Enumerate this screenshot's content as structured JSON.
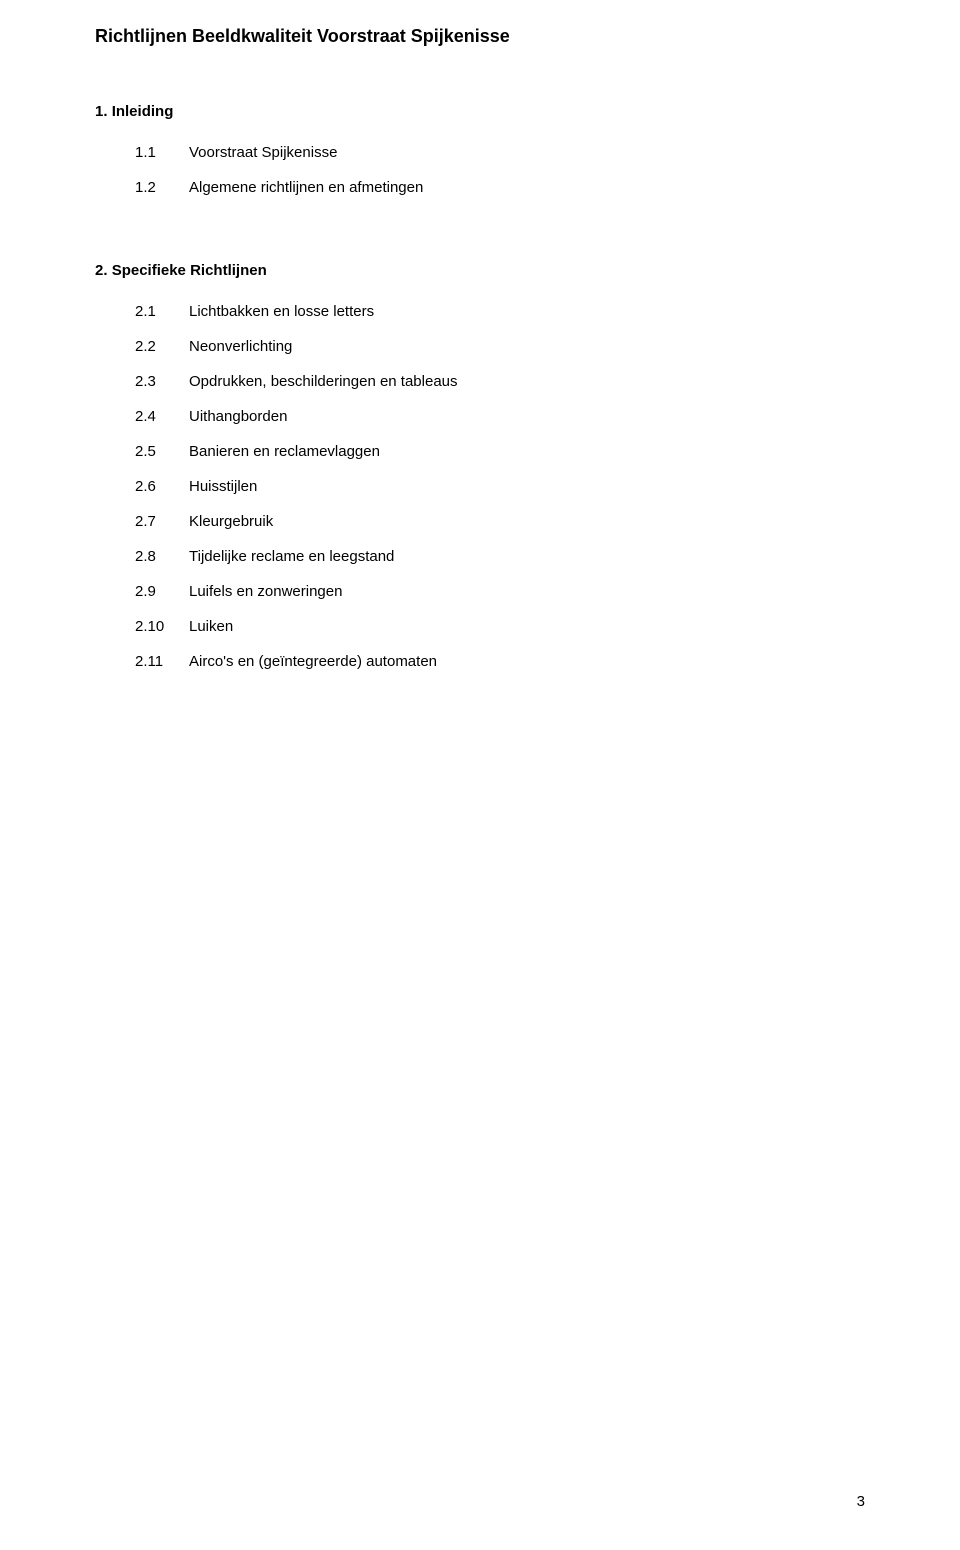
{
  "title": "Richtlijnen Beeldkwaliteit Voorstraat Spijkenisse",
  "section1": {
    "heading_num": "1.",
    "heading_text": "Inleiding",
    "items": [
      {
        "num": "1.1",
        "label": "Voorstraat Spijkenisse"
      },
      {
        "num": "1.2",
        "label": "Algemene richtlijnen en afmetingen"
      }
    ]
  },
  "section2": {
    "heading_num": "2.",
    "heading_text": "Specifieke Richtlijnen",
    "items": [
      {
        "num": "2.1",
        "label": "Lichtbakken en losse letters"
      },
      {
        "num": "2.2",
        "label": "Neonverlichting"
      },
      {
        "num": "2.3",
        "label": "Opdrukken, beschilderingen en tableaus"
      },
      {
        "num": "2.4",
        "label": "Uithangborden"
      },
      {
        "num": "2.5",
        "label": "Banieren en reclamevlaggen"
      },
      {
        "num": "2.6",
        "label": "Huisstijlen"
      },
      {
        "num": "2.7",
        "label": "Kleurgebruik"
      },
      {
        "num": "2.8",
        "label": "Tijdelijke reclame en leegstand"
      },
      {
        "num": "2.9",
        "label": "Luifels en zonweringen"
      },
      {
        "num": "2.10",
        "label": "Luiken"
      },
      {
        "num": "2.11",
        "label": "Airco's en (geïntegreerde) automaten"
      }
    ]
  },
  "page_number": "3"
}
